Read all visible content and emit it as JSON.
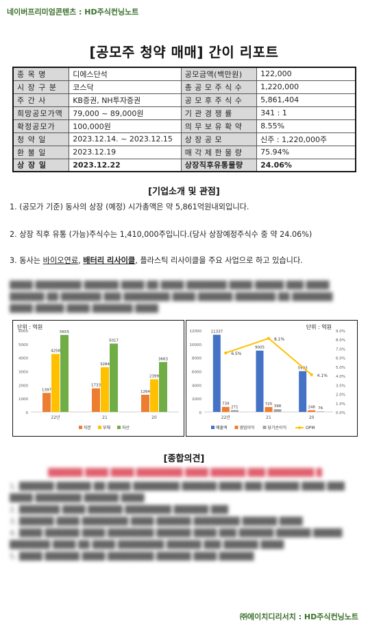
{
  "header": {
    "source_label": "네이버프리미엄콘텐츠 : HD주식컨닝노트"
  },
  "title": "[공모주 청약 매매] 간이 리포트",
  "info_table": [
    {
      "l1": "종 목 명",
      "v1": "디에스단석",
      "l2": "공모금액(백만원)",
      "v2": "122,000"
    },
    {
      "l1": "시 장 구 분",
      "v1": "코스닥",
      "l2": "총 공 모 주 식 수",
      "v2": "1,220,000"
    },
    {
      "l1": "주 간 사",
      "v1": "KB증권, NH투자증권",
      "l2": "공 모 후 주 식 수",
      "v2": "5,861,404"
    },
    {
      "l1": "희망공모가액",
      "v1": "79,000 ~ 89,000원",
      "l2": "기 관 경 쟁 률",
      "v2": "341 : 1"
    },
    {
      "l1": "확정공모가",
      "v1": "100,000원",
      "l2": "의 무 보 유 확 약",
      "v2": "8.55%"
    },
    {
      "l1": "청 약 일",
      "v1": "2023.12.14. ~ 2023.12.15",
      "l2": "상 장 공 모",
      "v2": "신주 : 1,220,000주"
    },
    {
      "l1": "환 불 일",
      "v1": "2023.12.19",
      "l2": "매 각 제 한 물 량",
      "v2": "75.94%"
    },
    {
      "l1": "상 장 일",
      "v1": "2023.12.22",
      "l2": "상장직후유통물량",
      "v2": "24.06%"
    }
  ],
  "company": {
    "heading": "[기업소개 및 관점]",
    "p1": "1. (공모가 기준) 동사의 상장 (예정) 시가총액은 약 5,861억원내외입니다.",
    "p2": "2. 상장 직후 유통 (가능)주식수는 1,410,000주입니다.(당사 상장예정주식수 중 약 24.06%)",
    "p3_prefix": "3. 동사는 ",
    "p3_u1": "바이오연료",
    "p3_mid": ", ",
    "p3_u2": "배터리 리사이클",
    "p3_suffix": ", 플라스틱 리사이클을 주요 사업으로 하고 있습니다."
  },
  "chart_data": [
    {
      "type": "bar",
      "unit_label": "단위 : 억원",
      "categories": [
        "22년",
        "21",
        "20"
      ],
      "ylim": [
        0,
        6000
      ],
      "yticks": [
        "0",
        "1000",
        "2000",
        "3000",
        "4000",
        "5000",
        "6000"
      ],
      "series": [
        {
          "name": "자본",
          "color": "#ed7d31",
          "values": [
            1397,
            1733,
            1264
          ]
        },
        {
          "name": "부채",
          "color": "#ffc000",
          "values": [
            4258,
            3284,
            2399
          ]
        },
        {
          "name": "자산",
          "color": "#70ad47",
          "values": [
            5655,
            5017,
            3663
          ]
        }
      ]
    },
    {
      "type": "bar",
      "unit_label": "단위 : 억원",
      "categories": [
        "22년",
        "21",
        "20"
      ],
      "ylim": [
        0,
        12000
      ],
      "yticks": [
        "0",
        "2000",
        "4000",
        "6000",
        "8000",
        "10000",
        "12000"
      ],
      "y2lim": [
        0,
        9
      ],
      "y2ticks": [
        "0.0%",
        "1.0%",
        "2.0%",
        "3.0%",
        "4.0%",
        "5.0%",
        "6.0%",
        "7.0%",
        "8.0%",
        "9.0%"
      ],
      "series": [
        {
          "name": "매출액",
          "color": "#4472c4",
          "values": [
            11337,
            9005,
            5993
          ]
        },
        {
          "name": "영업이익",
          "color": "#ed7d31",
          "values": [
            739,
            725,
            248
          ]
        },
        {
          "name": "당기순이익",
          "color": "#a5a5a5",
          "values": [
            271,
            398,
            76
          ]
        }
      ],
      "line_series": {
        "name": "OPM",
        "color": "#ffc000",
        "values": [
          6.5,
          8.1,
          4.1
        ],
        "labels": [
          "6.5%",
          "8.1%",
          "4.1%"
        ]
      }
    }
  ],
  "opinion": {
    "heading": "[종합의견]"
  },
  "footer": {
    "label": "㈜에이치디리서치 : HD주식컨닝노트"
  }
}
